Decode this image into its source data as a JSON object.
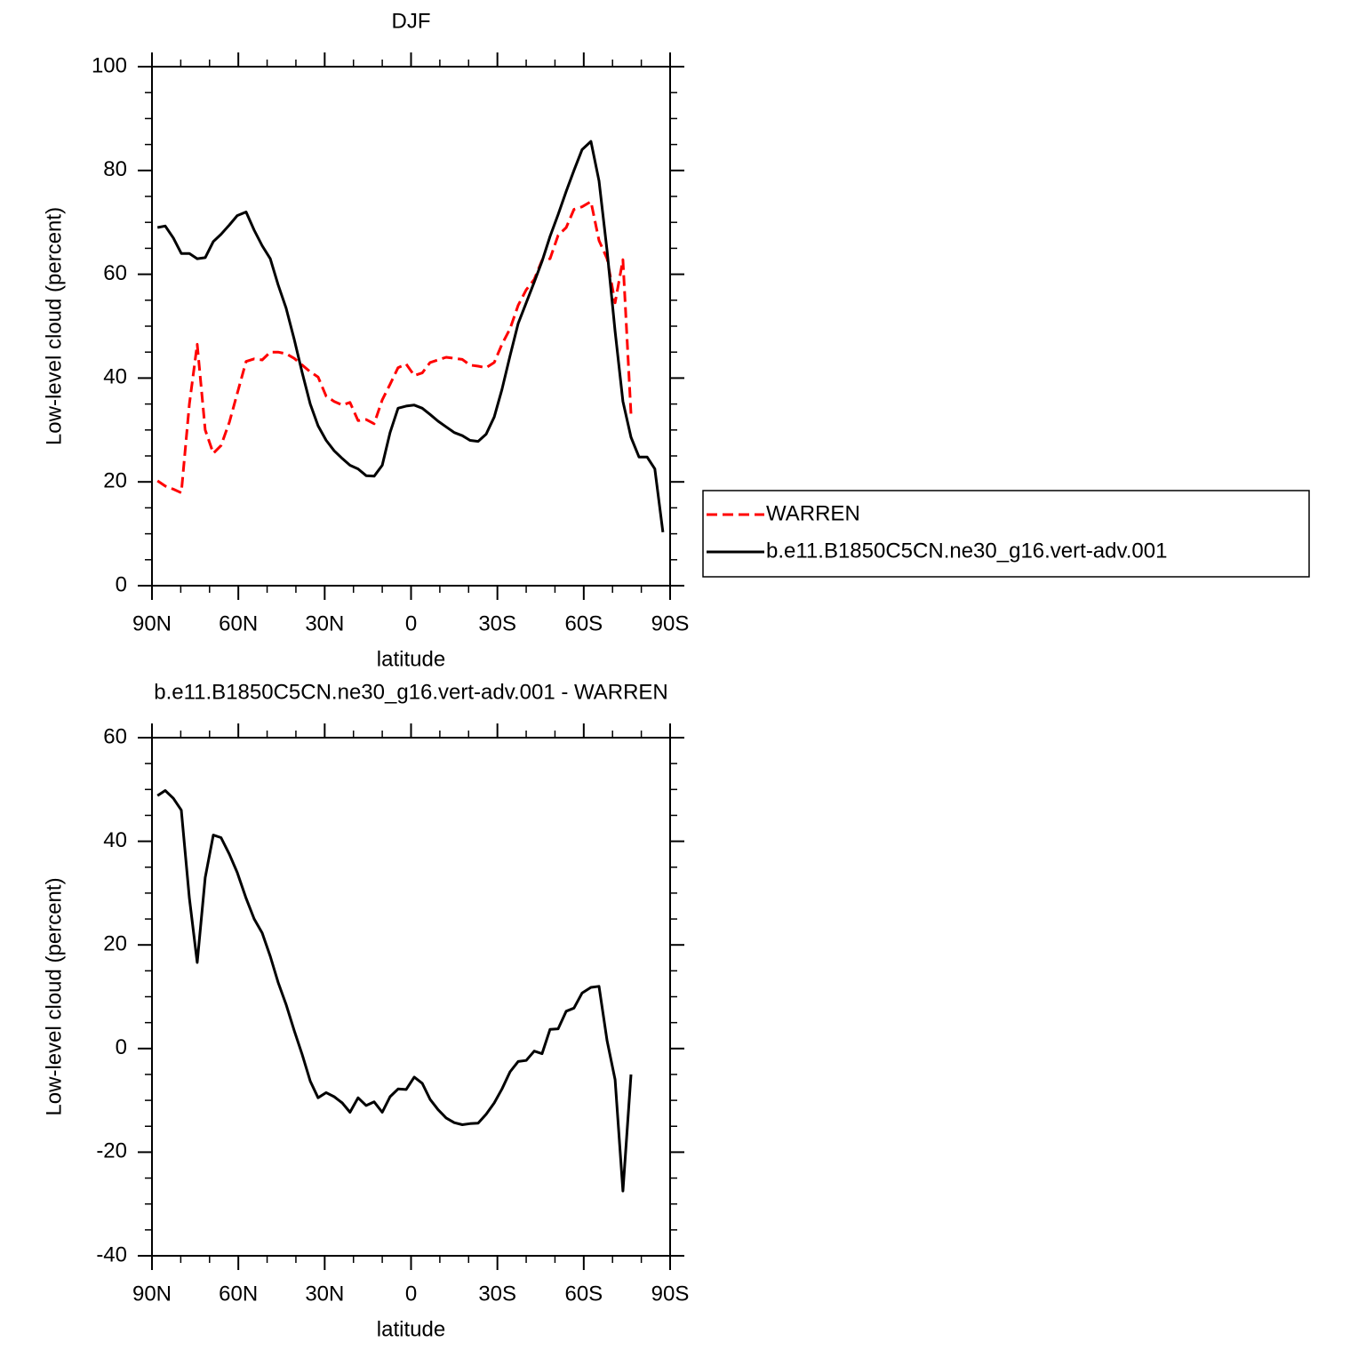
{
  "chart_data": [
    {
      "type": "line",
      "title": "DJF",
      "xlabel": "latitude",
      "ylabel": "Low-level cloud (percent)",
      "xlim": [
        90,
        -90
      ],
      "xticks": [
        {
          "value": 90,
          "label": "90N"
        },
        {
          "value": 60,
          "label": "60N"
        },
        {
          "value": 30,
          "label": "30N"
        },
        0,
        {
          "value": -30,
          "label": "30S"
        },
        {
          "value": -60,
          "label": "60S"
        },
        {
          "value": -90,
          "label": "90S"
        }
      ],
      "ylim": [
        0,
        100
      ],
      "yticks": [
        0,
        20,
        40,
        60,
        80,
        100
      ],
      "legend": "right",
      "x": [
        88.1,
        85.4,
        82.6,
        79.8,
        77.0,
        74.3,
        71.5,
        68.7,
        66.0,
        63.1,
        60.4,
        57.3,
        54.5,
        51.7,
        48.9,
        46.2,
        43.4,
        40.6,
        37.8,
        35.0,
        32.3,
        29.5,
        26.7,
        23.9,
        21.2,
        18.4,
        15.6,
        12.8,
        10.0,
        7.3,
        4.5,
        1.7,
        -1.1,
        -3.9,
        -6.6,
        -9.4,
        -12.2,
        -15.0,
        -17.8,
        -20.5,
        -23.3,
        -26.1,
        -28.9,
        -31.6,
        -34.4,
        -37.2,
        -40.0,
        -42.8,
        -45.5,
        -48.3,
        -51.1,
        -53.9,
        -56.6,
        -59.4,
        -62.5,
        -65.3,
        -68.1,
        -70.9,
        -73.6,
        -76.4,
        -79.2,
        -82.0,
        -84.7,
        -87.5
      ],
      "series": [
        {
          "name": "WARREN",
          "color": "#ff0000",
          "dashed": true,
          "values": [
            20.2,
            19.2,
            18.6,
            17.9,
            35,
            46.5,
            30,
            25.5,
            27,
            31.5,
            37,
            43.2,
            43.7,
            43.5,
            45,
            45,
            44.7,
            43.8,
            42.5,
            41.2,
            40.2,
            36.5,
            35.5,
            34.8,
            35.3,
            31.8,
            32,
            31.2,
            35.8,
            38.8,
            42,
            42.7,
            40.5,
            41,
            43,
            43.5,
            44,
            43.8,
            43.6,
            42.5,
            42.3,
            42,
            43,
            46.5,
            49.5,
            54,
            57,
            59,
            62.7,
            63,
            67.5,
            69,
            72.5,
            73,
            74,
            66.5,
            63,
            54.5,
            62.8,
            33,
            null,
            null,
            null,
            null
          ]
        },
        {
          "name": "b.e11.B1850C5CN.ne30_g16.vert-adv.001",
          "color": "#000000",
          "dashed": false,
          "values": [
            69,
            69.3,
            67,
            64,
            64,
            63,
            63.2,
            66.3,
            67.7,
            69.5,
            71.3,
            72,
            68.5,
            65.5,
            63,
            58,
            53.5,
            47.5,
            41,
            35,
            30.8,
            28,
            26,
            24.5,
            23.2,
            22.5,
            21.2,
            21.1,
            23.2,
            29.5,
            34.2,
            34.6,
            34.8,
            34.2,
            33,
            31.7,
            30.6,
            29.5,
            28.9,
            28,
            27.8,
            29.2,
            32.5,
            37.8,
            44.3,
            50.5,
            54.5,
            58.5,
            62.5,
            67.3,
            71.5,
            76,
            80,
            84,
            85.6,
            78,
            64.5,
            49,
            35.5,
            28.6,
            24.8,
            24.8,
            22.5,
            10.3
          ]
        }
      ]
    },
    {
      "type": "line",
      "title": "b.e11.B1850C5CN.ne30_g16.vert-adv.001 - WARREN",
      "xlabel": "latitude",
      "ylabel": "Low-level cloud (percent)",
      "xlim": [
        90,
        -90
      ],
      "xticks": [
        {
          "value": 90,
          "label": "90N"
        },
        {
          "value": 60,
          "label": "60N"
        },
        {
          "value": 30,
          "label": "30N"
        },
        0,
        {
          "value": -30,
          "label": "30S"
        },
        {
          "value": -60,
          "label": "60S"
        },
        {
          "value": -90,
          "label": "90S"
        }
      ],
      "ylim": [
        -40,
        60
      ],
      "yticks": [
        -40,
        -20,
        0,
        20,
        40,
        60
      ],
      "x": [
        88.1,
        85.4,
        82.6,
        79.8,
        77.0,
        74.3,
        71.5,
        68.7,
        66.0,
        63.1,
        60.4,
        57.3,
        54.5,
        51.7,
        48.9,
        46.2,
        43.4,
        40.6,
        37.8,
        35.0,
        32.3,
        29.5,
        26.7,
        23.9,
        21.2,
        18.4,
        15.6,
        12.8,
        10.0,
        7.3,
        4.5,
        1.7,
        -1.1,
        -3.9,
        -6.6,
        -9.4,
        -12.2,
        -15.0,
        -17.8,
        -20.5,
        -23.3,
        -26.1,
        -28.9,
        -31.6,
        -34.4,
        -37.2,
        -40.0,
        -42.8,
        -45.5,
        -48.3,
        -51.1,
        -53.9,
        -56.6,
        -59.4,
        -62.5,
        -65.3,
        -68.1,
        -70.9,
        -73.6,
        -76.4,
        -79.2,
        -82.0,
        -84.7,
        -87.5
      ],
      "series": [
        {
          "color": "#000000",
          "dashed": false,
          "values": [
            48.8,
            49.8,
            48.3,
            46,
            29,
            16.6,
            33,
            41.2,
            40.7,
            37.5,
            34,
            29,
            25,
            22.3,
            17.8,
            12.8,
            8.5,
            3.5,
            -1.2,
            -6.3,
            -9.5,
            -8.5,
            -9.3,
            -10.5,
            -12.3,
            -9.5,
            -11,
            -10.3,
            -12.3,
            -9.3,
            -7.8,
            -7.9,
            -5.5,
            -6.7,
            -9.8,
            -11.8,
            -13.4,
            -14.3,
            -14.7,
            -14.5,
            -14.4,
            -12.7,
            -10.5,
            -7.8,
            -4.5,
            -2.5,
            -2.3,
            -0.5,
            -1,
            3.7,
            3.8,
            7.2,
            7.8,
            10.7,
            11.8,
            12,
            1.5,
            -6,
            -27.5,
            -5,
            null,
            null,
            null,
            null
          ]
        }
      ]
    }
  ]
}
